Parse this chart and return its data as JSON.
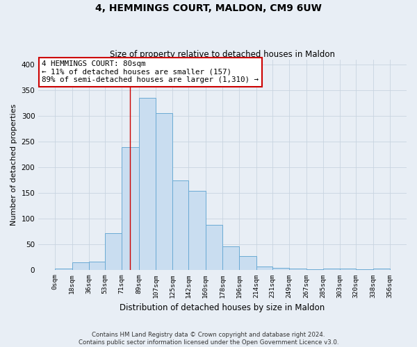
{
  "title": "4, HEMMINGS COURT, MALDON, CM9 6UW",
  "subtitle": "Size of property relative to detached houses in Maldon",
  "xlabel": "Distribution of detached houses by size in Maldon",
  "ylabel": "Number of detached properties",
  "bin_edges": [
    0,
    18,
    36,
    53,
    71,
    89,
    107,
    125,
    142,
    160,
    178,
    196,
    214,
    231,
    249,
    267,
    285,
    303,
    320,
    338,
    356
  ],
  "bin_labels": [
    "0sqm",
    "18sqm",
    "36sqm",
    "53sqm",
    "71sqm",
    "89sqm",
    "107sqm",
    "125sqm",
    "142sqm",
    "160sqm",
    "178sqm",
    "196sqm",
    "214sqm",
    "231sqm",
    "249sqm",
    "267sqm",
    "285sqm",
    "303sqm",
    "320sqm",
    "338sqm",
    "356sqm"
  ],
  "bar_heights": [
    3,
    15,
    16,
    72,
    240,
    335,
    305,
    175,
    155,
    88,
    46,
    28,
    7,
    5,
    3,
    2,
    3,
    3,
    2,
    3
  ],
  "bar_color": "#c9ddf0",
  "bar_edge_color": "#6aaad4",
  "grid_color": "#c8d4e0",
  "background_color": "#e8eef5",
  "property_line_x": 80,
  "property_line_color": "#cc0000",
  "annotation_line1": "4 HEMMINGS COURT: 80sqm",
  "annotation_line2": "← 11% of detached houses are smaller (157)",
  "annotation_line3": "89% of semi-detached houses are larger (1,310) →",
  "annotation_box_color": "#ffffff",
  "annotation_box_edge_color": "#cc0000",
  "ylim": [
    0,
    410
  ],
  "yticks": [
    0,
    50,
    100,
    150,
    200,
    250,
    300,
    350,
    400
  ],
  "footer_line1": "Contains HM Land Registry data © Crown copyright and database right 2024.",
  "footer_line2": "Contains public sector information licensed under the Open Government Licence v3.0."
}
